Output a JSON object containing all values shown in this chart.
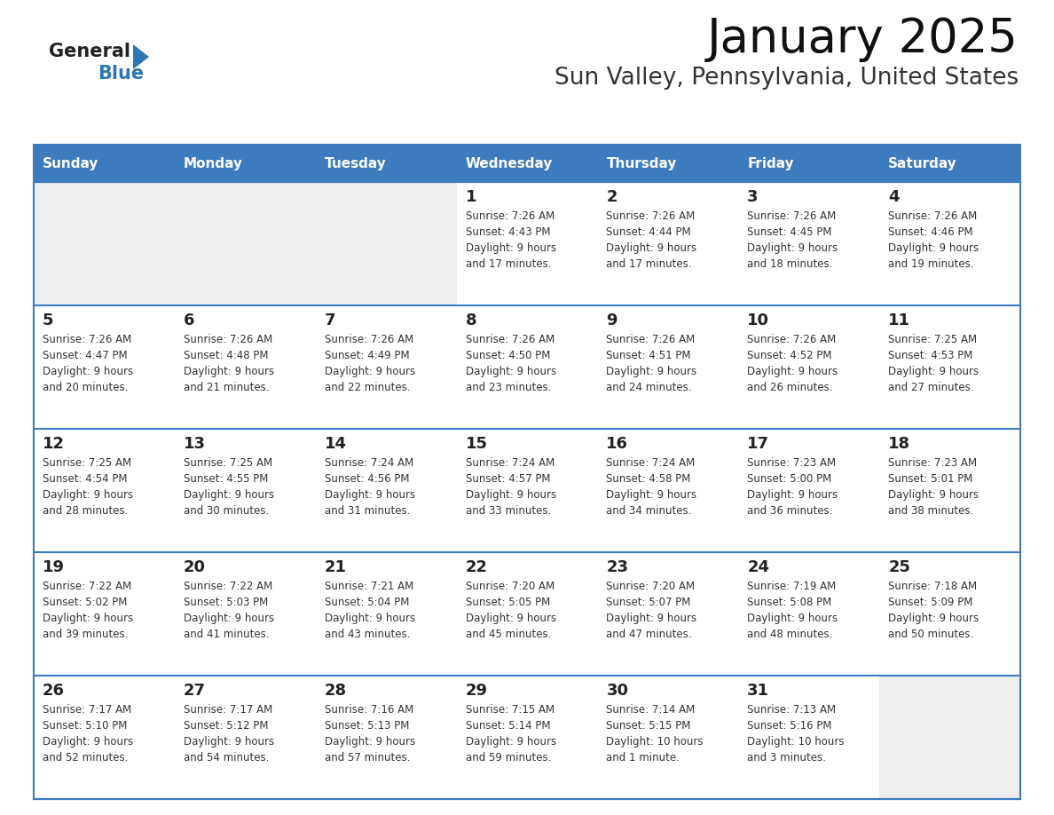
{
  "title": "January 2025",
  "subtitle": "Sun Valley, Pennsylvania, United States",
  "header_color": "#3D7BBF",
  "header_text_color": "#FFFFFF",
  "day_names": [
    "Sunday",
    "Monday",
    "Tuesday",
    "Wednesday",
    "Thursday",
    "Friday",
    "Saturday"
  ],
  "weeks": [
    [
      {
        "day": null,
        "sunrise": null,
        "sunset": null,
        "daylight": null
      },
      {
        "day": null,
        "sunrise": null,
        "sunset": null,
        "daylight": null
      },
      {
        "day": null,
        "sunrise": null,
        "sunset": null,
        "daylight": null
      },
      {
        "day": 1,
        "sunrise": "7:26 AM",
        "sunset": "4:43 PM",
        "daylight": "9 hours\nand 17 minutes."
      },
      {
        "day": 2,
        "sunrise": "7:26 AM",
        "sunset": "4:44 PM",
        "daylight": "9 hours\nand 17 minutes."
      },
      {
        "day": 3,
        "sunrise": "7:26 AM",
        "sunset": "4:45 PM",
        "daylight": "9 hours\nand 18 minutes."
      },
      {
        "day": 4,
        "sunrise": "7:26 AM",
        "sunset": "4:46 PM",
        "daylight": "9 hours\nand 19 minutes."
      }
    ],
    [
      {
        "day": 5,
        "sunrise": "7:26 AM",
        "sunset": "4:47 PM",
        "daylight": "9 hours\nand 20 minutes."
      },
      {
        "day": 6,
        "sunrise": "7:26 AM",
        "sunset": "4:48 PM",
        "daylight": "9 hours\nand 21 minutes."
      },
      {
        "day": 7,
        "sunrise": "7:26 AM",
        "sunset": "4:49 PM",
        "daylight": "9 hours\nand 22 minutes."
      },
      {
        "day": 8,
        "sunrise": "7:26 AM",
        "sunset": "4:50 PM",
        "daylight": "9 hours\nand 23 minutes."
      },
      {
        "day": 9,
        "sunrise": "7:26 AM",
        "sunset": "4:51 PM",
        "daylight": "9 hours\nand 24 minutes."
      },
      {
        "day": 10,
        "sunrise": "7:26 AM",
        "sunset": "4:52 PM",
        "daylight": "9 hours\nand 26 minutes."
      },
      {
        "day": 11,
        "sunrise": "7:25 AM",
        "sunset": "4:53 PM",
        "daylight": "9 hours\nand 27 minutes."
      }
    ],
    [
      {
        "day": 12,
        "sunrise": "7:25 AM",
        "sunset": "4:54 PM",
        "daylight": "9 hours\nand 28 minutes."
      },
      {
        "day": 13,
        "sunrise": "7:25 AM",
        "sunset": "4:55 PM",
        "daylight": "9 hours\nand 30 minutes."
      },
      {
        "day": 14,
        "sunrise": "7:24 AM",
        "sunset": "4:56 PM",
        "daylight": "9 hours\nand 31 minutes."
      },
      {
        "day": 15,
        "sunrise": "7:24 AM",
        "sunset": "4:57 PM",
        "daylight": "9 hours\nand 33 minutes."
      },
      {
        "day": 16,
        "sunrise": "7:24 AM",
        "sunset": "4:58 PM",
        "daylight": "9 hours\nand 34 minutes."
      },
      {
        "day": 17,
        "sunrise": "7:23 AM",
        "sunset": "5:00 PM",
        "daylight": "9 hours\nand 36 minutes."
      },
      {
        "day": 18,
        "sunrise": "7:23 AM",
        "sunset": "5:01 PM",
        "daylight": "9 hours\nand 38 minutes."
      }
    ],
    [
      {
        "day": 19,
        "sunrise": "7:22 AM",
        "sunset": "5:02 PM",
        "daylight": "9 hours\nand 39 minutes."
      },
      {
        "day": 20,
        "sunrise": "7:22 AM",
        "sunset": "5:03 PM",
        "daylight": "9 hours\nand 41 minutes."
      },
      {
        "day": 21,
        "sunrise": "7:21 AM",
        "sunset": "5:04 PM",
        "daylight": "9 hours\nand 43 minutes."
      },
      {
        "day": 22,
        "sunrise": "7:20 AM",
        "sunset": "5:05 PM",
        "daylight": "9 hours\nand 45 minutes."
      },
      {
        "day": 23,
        "sunrise": "7:20 AM",
        "sunset": "5:07 PM",
        "daylight": "9 hours\nand 47 minutes."
      },
      {
        "day": 24,
        "sunrise": "7:19 AM",
        "sunset": "5:08 PM",
        "daylight": "9 hours\nand 48 minutes."
      },
      {
        "day": 25,
        "sunrise": "7:18 AM",
        "sunset": "5:09 PM",
        "daylight": "9 hours\nand 50 minutes."
      }
    ],
    [
      {
        "day": 26,
        "sunrise": "7:17 AM",
        "sunset": "5:10 PM",
        "daylight": "9 hours\nand 52 minutes."
      },
      {
        "day": 27,
        "sunrise": "7:17 AM",
        "sunset": "5:12 PM",
        "daylight": "9 hours\nand 54 minutes."
      },
      {
        "day": 28,
        "sunrise": "7:16 AM",
        "sunset": "5:13 PM",
        "daylight": "9 hours\nand 57 minutes."
      },
      {
        "day": 29,
        "sunrise": "7:15 AM",
        "sunset": "5:14 PM",
        "daylight": "9 hours\nand 59 minutes."
      },
      {
        "day": 30,
        "sunrise": "7:14 AM",
        "sunset": "5:15 PM",
        "daylight": "10 hours\nand 1 minute."
      },
      {
        "day": 31,
        "sunrise": "7:13 AM",
        "sunset": "5:16 PM",
        "daylight": "10 hours\nand 3 minutes."
      },
      {
        "day": null,
        "sunrise": null,
        "sunset": null,
        "daylight": null
      }
    ]
  ],
  "background_color": "#FFFFFF",
  "cell_bg_color": "#EFEFEF",
  "border_color": "#3D7BBF",
  "text_color": "#333333",
  "day_number_color": "#222222"
}
